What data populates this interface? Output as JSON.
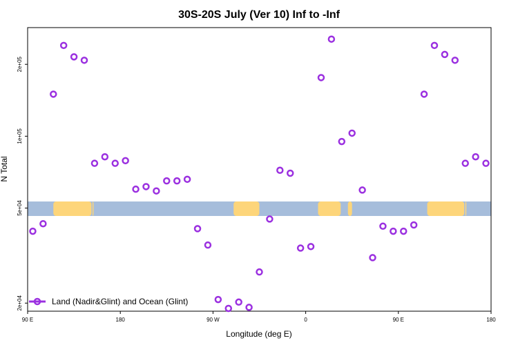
{
  "chart_data": {
    "type": "scatter",
    "title": "30S-20S July (Ver 10)   Inf to -Inf",
    "xlabel": "Longitude (deg E)",
    "ylabel": "N Total",
    "x_scale": "linear",
    "y_scale": "log",
    "xlim": [
      90,
      540
    ],
    "ylim": [
      18500,
      285000
    ],
    "x_ticks": [
      {
        "value": 90,
        "label": "90 E"
      },
      {
        "value": 180,
        "label": "180"
      },
      {
        "value": 270,
        "label": "90 W"
      },
      {
        "value": 360,
        "label": "0"
      },
      {
        "value": 450,
        "label": "90 E"
      },
      {
        "value": 540,
        "label": "180"
      }
    ],
    "y_ticks": [
      {
        "value": 20000,
        "label": "2e+04"
      },
      {
        "value": 50000,
        "label": "5e+04"
      },
      {
        "value": 100000,
        "label": "1e+05"
      },
      {
        "value": 200000,
        "label": "2e+05"
      }
    ],
    "grid": false,
    "legend_position": "bottom-left",
    "series": [
      {
        "name": "Land (Nadir&Glint) and Ocean (Glint)",
        "color": "#9b30e0",
        "marker": "open-circle",
        "points": [
          [
            95,
            40000
          ],
          [
            105,
            43000
          ],
          [
            115,
            150000
          ],
          [
            125,
            240000
          ],
          [
            135,
            215000
          ],
          [
            145,
            208000
          ],
          [
            155,
            77000
          ],
          [
            165,
            82000
          ],
          [
            175,
            77000
          ],
          [
            185,
            79000
          ],
          [
            195,
            60000
          ],
          [
            205,
            61500
          ],
          [
            215,
            59000
          ],
          [
            225,
            65000
          ],
          [
            235,
            65000
          ],
          [
            245,
            66000
          ],
          [
            255,
            41000
          ],
          [
            265,
            35000
          ],
          [
            275,
            20700
          ],
          [
            285,
            19000
          ],
          [
            295,
            20200
          ],
          [
            305,
            19200
          ],
          [
            315,
            27000
          ],
          [
            325,
            45000
          ],
          [
            335,
            72000
          ],
          [
            345,
            70000
          ],
          [
            355,
            34000
          ],
          [
            365,
            34500
          ],
          [
            375,
            176000
          ],
          [
            385,
            255000
          ],
          [
            395,
            95000
          ],
          [
            405,
            103000
          ],
          [
            415,
            59500
          ],
          [
            425,
            31000
          ],
          [
            435,
            42000
          ],
          [
            445,
            40000
          ],
          [
            455,
            40000
          ],
          [
            465,
            42500
          ],
          [
            475,
            150000
          ],
          [
            485,
            240000
          ],
          [
            495,
            220000
          ],
          [
            505,
            208000
          ],
          [
            515,
            77000
          ],
          [
            525,
            82000
          ],
          [
            535,
            77000
          ]
        ]
      }
    ],
    "map_colors": {
      "ocean": "#a6bddb",
      "land": "#fdd57a"
    }
  }
}
